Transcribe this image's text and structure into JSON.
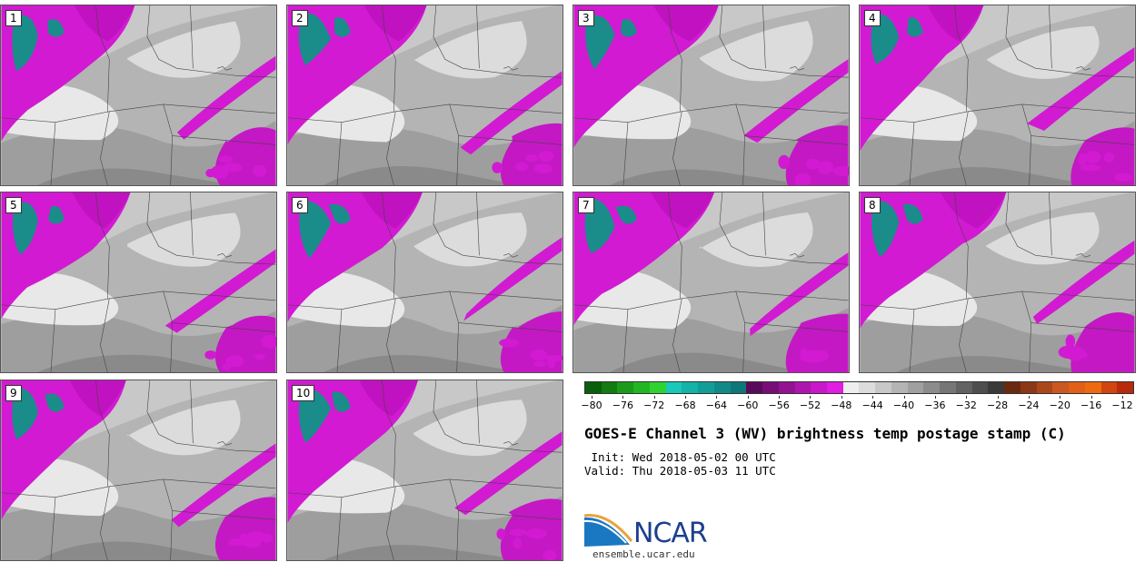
{
  "panels": [
    {
      "label": "1"
    },
    {
      "label": "2"
    },
    {
      "label": "3"
    },
    {
      "label": "4"
    },
    {
      "label": "5"
    },
    {
      "label": "6"
    },
    {
      "label": "7"
    },
    {
      "label": "8"
    },
    {
      "label": "9"
    },
    {
      "label": "10"
    }
  ],
  "colorbar": {
    "colors": [
      "#0b5e0b",
      "#127b12",
      "#1b9a1b",
      "#23b623",
      "#30d230",
      "#18c8b8",
      "#14b2a8",
      "#129e98",
      "#0f8a88",
      "#0d7878",
      "#5a0a5a",
      "#760e76",
      "#921292",
      "#ad16ad",
      "#c918c9",
      "#e21ce2",
      "#eeeeee",
      "#dcdcdc",
      "#c8c8c8",
      "#b4b4b4",
      "#a0a0a0",
      "#8c8c8c",
      "#767676",
      "#626262",
      "#4e4e4e",
      "#3a3a3a",
      "#6a2a10",
      "#8a3816",
      "#aa481c",
      "#ca5820",
      "#e06018",
      "#ee6a10",
      "#d24410",
      "#b82a0a"
    ],
    "ticks": [
      "−80",
      "−76",
      "−72",
      "−68",
      "−64",
      "−60",
      "−56",
      "−52",
      "−48",
      "−44",
      "−40",
      "−36",
      "−32",
      "−28",
      "−24",
      "−20",
      "−16",
      "−12"
    ]
  },
  "title": "GOES-E Channel 3 (WV) brightness temp postage stamp (C)",
  "init": " Init: Wed 2018-05-02 00 UTC",
  "valid": "Valid: Thu 2018-05-03 11 UTC",
  "logo": {
    "text": "NCAR",
    "site": "ensemble.ucar.edu"
  }
}
